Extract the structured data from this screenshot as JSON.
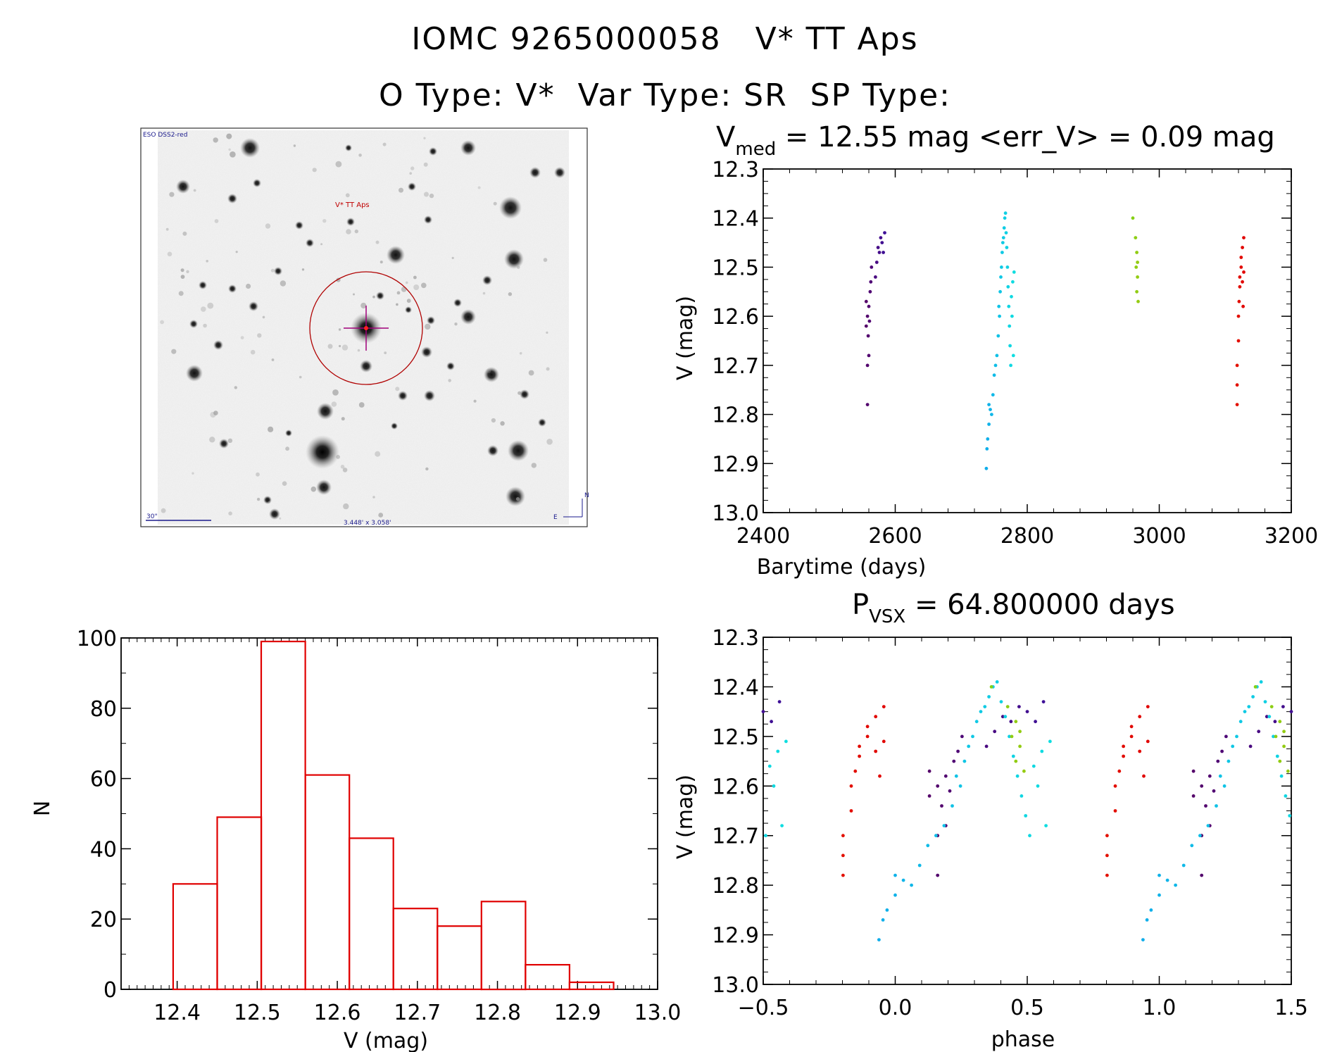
{
  "header": {
    "line1": "IOMC 9265000058   V* TT Aps",
    "line2": "O Type: V*  Var Type: SR  SP Type:"
  },
  "image_panel": {
    "survey_label": "ESO DSS2-red",
    "target_label": "V* TT Aps",
    "scale_label": "30\"",
    "fov_label": "3.448' x 3.058'",
    "compass_n": "N",
    "compass_e": "E"
  },
  "chart_data": [
    {
      "type": "scatter",
      "title_main": "V",
      "title_sub": "med",
      "title_rest": " = 12.55 mag <err_V> = 0.09 mag",
      "xlabel": "Barytime (days)",
      "ylabel": "V (mag)",
      "xlim": [
        2400,
        3200
      ],
      "ylim": [
        12.3,
        13.0
      ],
      "y_inverted": true,
      "xticks": [
        "2400",
        "2600",
        "2800",
        "3000",
        "3200"
      ],
      "yticks": [
        "12.3",
        "12.4",
        "12.5",
        "12.6",
        "12.7",
        "12.8",
        "12.9",
        "13.0"
      ],
      "color_scale": "rainbow by time",
      "points": [
        {
          "x": 2558,
          "y": 12.78
        },
        {
          "x": 2558,
          "y": 12.7
        },
        {
          "x": 2560,
          "y": 12.68
        },
        {
          "x": 2556,
          "y": 12.62
        },
        {
          "x": 2558,
          "y": 12.6
        },
        {
          "x": 2560,
          "y": 12.58
        },
        {
          "x": 2562,
          "y": 12.55
        },
        {
          "x": 2556,
          "y": 12.57
        },
        {
          "x": 2559,
          "y": 12.64
        },
        {
          "x": 2561,
          "y": 12.61
        },
        {
          "x": 2563,
          "y": 12.53
        },
        {
          "x": 2564,
          "y": 12.5
        },
        {
          "x": 2570,
          "y": 12.52
        },
        {
          "x": 2572,
          "y": 12.49
        },
        {
          "x": 2574,
          "y": 12.46
        },
        {
          "x": 2576,
          "y": 12.47
        },
        {
          "x": 2578,
          "y": 12.44
        },
        {
          "x": 2580,
          "y": 12.45
        },
        {
          "x": 2582,
          "y": 12.47
        },
        {
          "x": 2584,
          "y": 12.43
        },
        {
          "x": 2738,
          "y": 12.91
        },
        {
          "x": 2739,
          "y": 12.87
        },
        {
          "x": 2740,
          "y": 12.85
        },
        {
          "x": 2742,
          "y": 12.82
        },
        {
          "x": 2744,
          "y": 12.79
        },
        {
          "x": 2742,
          "y": 12.78
        },
        {
          "x": 2746,
          "y": 12.8
        },
        {
          "x": 2748,
          "y": 12.76
        },
        {
          "x": 2750,
          "y": 12.72
        },
        {
          "x": 2752,
          "y": 12.7
        },
        {
          "x": 2754,
          "y": 12.68
        },
        {
          "x": 2756,
          "y": 12.64
        },
        {
          "x": 2758,
          "y": 12.6
        },
        {
          "x": 2757,
          "y": 12.58
        },
        {
          "x": 2759,
          "y": 12.55
        },
        {
          "x": 2760,
          "y": 12.52
        },
        {
          "x": 2761,
          "y": 12.5
        },
        {
          "x": 2762,
          "y": 12.47
        },
        {
          "x": 2763,
          "y": 12.45
        },
        {
          "x": 2764,
          "y": 12.44
        },
        {
          "x": 2765,
          "y": 12.42
        },
        {
          "x": 2766,
          "y": 12.4
        },
        {
          "x": 2767,
          "y": 12.39
        },
        {
          "x": 2768,
          "y": 12.43
        },
        {
          "x": 2769,
          "y": 12.46
        },
        {
          "x": 2770,
          "y": 12.5
        },
        {
          "x": 2771,
          "y": 12.54
        },
        {
          "x": 2772,
          "y": 12.58
        },
        {
          "x": 2773,
          "y": 12.62
        },
        {
          "x": 2774,
          "y": 12.66
        },
        {
          "x": 2775,
          "y": 12.7
        },
        {
          "x": 2776,
          "y": 12.56
        },
        {
          "x": 2778,
          "y": 12.53
        },
        {
          "x": 2777,
          "y": 12.6
        },
        {
          "x": 2779,
          "y": 12.68
        },
        {
          "x": 2780,
          "y": 12.51
        },
        {
          "x": 2960,
          "y": 12.4
        },
        {
          "x": 2964,
          "y": 12.44
        },
        {
          "x": 2966,
          "y": 12.47
        },
        {
          "x": 2965,
          "y": 12.5
        },
        {
          "x": 2967,
          "y": 12.52
        },
        {
          "x": 2966,
          "y": 12.55
        },
        {
          "x": 2968,
          "y": 12.57
        },
        {
          "x": 2967,
          "y": 12.49
        },
        {
          "x": 3118,
          "y": 12.78
        },
        {
          "x": 3118,
          "y": 12.74
        },
        {
          "x": 3118,
          "y": 12.7
        },
        {
          "x": 3120,
          "y": 12.65
        },
        {
          "x": 3120,
          "y": 12.6
        },
        {
          "x": 3121,
          "y": 12.57
        },
        {
          "x": 3122,
          "y": 12.54
        },
        {
          "x": 3122,
          "y": 12.52
        },
        {
          "x": 3124,
          "y": 12.5
        },
        {
          "x": 3124,
          "y": 12.48
        },
        {
          "x": 3126,
          "y": 12.46
        },
        {
          "x": 3126,
          "y": 12.53
        },
        {
          "x": 3127,
          "y": 12.58
        },
        {
          "x": 3128,
          "y": 12.51
        },
        {
          "x": 3128,
          "y": 12.44
        }
      ]
    },
    {
      "type": "bar",
      "xlabel": "V (mag)",
      "ylabel": "N",
      "xlim": [
        12.33,
        13.0
      ],
      "ylim": [
        0,
        100
      ],
      "xticks": [
        "12.4",
        "12.5",
        "12.6",
        "12.7",
        "12.8",
        "12.9",
        "13.0"
      ],
      "yticks": [
        "0",
        "20",
        "40",
        "60",
        "80",
        "100"
      ],
      "bin_edges": [
        12.395,
        12.45,
        12.505,
        12.56,
        12.615,
        12.67,
        12.725,
        12.78,
        12.835,
        12.89,
        12.945
      ],
      "values": [
        30,
        49,
        99,
        61,
        43,
        23,
        18,
        25,
        7,
        2
      ],
      "color": "#e00000"
    },
    {
      "type": "scatter",
      "title_main": "P",
      "title_sub": "VSX",
      "title_rest": " = 64.800000 days",
      "xlabel": "phase",
      "ylabel": "V (mag)",
      "xlim": [
        -0.5,
        1.5
      ],
      "ylim": [
        12.3,
        13.0
      ],
      "y_inverted": true,
      "xticks": [
        "−0.5",
        "0.0",
        "0.5",
        "1.0",
        "1.5"
      ],
      "yticks": [
        "12.3",
        "12.4",
        "12.5",
        "12.6",
        "12.7",
        "12.8",
        "12.9",
        "13.0"
      ],
      "color_scale": "rainbow by time",
      "period_days": 64.8
    }
  ]
}
